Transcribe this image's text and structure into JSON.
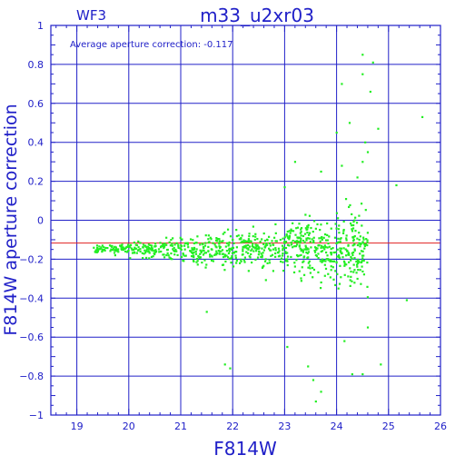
{
  "chart_data": {
    "type": "scatter",
    "panel_label": "WF3",
    "title": "m33_u2xr03",
    "annotation": "Average aperture correction: -0.117",
    "xlabel": "F814W",
    "ylabel": "F814W aperture correction",
    "xlim": [
      18.5,
      26
    ],
    "ylim": [
      -1,
      1
    ],
    "x_ticks": [
      19,
      20,
      21,
      22,
      23,
      24,
      25,
      26
    ],
    "y_ticks": [
      -1,
      -0.8,
      -0.6,
      -0.4,
      -0.2,
      0,
      0.2,
      0.4,
      0.6,
      0.8,
      1
    ],
    "x_tick_labels": [
      "19",
      "20",
      "21",
      "22",
      "23",
      "24",
      "25",
      "26"
    ],
    "y_tick_labels": [
      "−1",
      "−0.8",
      "−0.6",
      "−0.4",
      "−0.2",
      "0",
      "0.2",
      "0.4",
      "0.6",
      "0.8",
      "1"
    ],
    "grid": true,
    "reference_line": {
      "y": -0.117,
      "color": "#e02020"
    },
    "colors": {
      "points": "#22ee22",
      "axes": "#2020c8",
      "grid": "#2020c8"
    },
    "outliers": [
      {
        "x": 24.5,
        "y": 0.85
      },
      {
        "x": 24.7,
        "y": 0.81
      },
      {
        "x": 24.5,
        "y": 0.75
      },
      {
        "x": 24.65,
        "y": 0.66
      },
      {
        "x": 25.65,
        "y": 0.53
      },
      {
        "x": 24.1,
        "y": 0.7
      },
      {
        "x": 24.25,
        "y": 0.5
      },
      {
        "x": 24.8,
        "y": 0.47
      },
      {
        "x": 24.0,
        "y": 0.45
      },
      {
        "x": 24.55,
        "y": 0.4
      },
      {
        "x": 23.2,
        "y": 0.3
      },
      {
        "x": 24.6,
        "y": 0.35
      },
      {
        "x": 24.1,
        "y": 0.28
      },
      {
        "x": 23.7,
        "y": 0.25
      },
      {
        "x": 24.4,
        "y": 0.22
      },
      {
        "x": 25.15,
        "y": 0.18
      },
      {
        "x": 23.0,
        "y": 0.17
      },
      {
        "x": 24.5,
        "y": 0.3
      },
      {
        "x": 23.45,
        "y": -0.75
      },
      {
        "x": 23.55,
        "y": -0.82
      },
      {
        "x": 23.7,
        "y": -0.88
      },
      {
        "x": 24.3,
        "y": -0.79
      },
      {
        "x": 24.5,
        "y": -0.79
      },
      {
        "x": 24.85,
        "y": -0.74
      },
      {
        "x": 21.85,
        "y": -0.74
      },
      {
        "x": 21.95,
        "y": -0.76
      },
      {
        "x": 25.35,
        "y": -0.41
      },
      {
        "x": 23.05,
        "y": -0.65
      },
      {
        "x": 24.15,
        "y": -0.62
      },
      {
        "x": 21.5,
        "y": -0.47
      },
      {
        "x": 23.6,
        "y": -0.93
      },
      {
        "x": 24.6,
        "y": -0.55
      }
    ],
    "cluster": {
      "n": 900,
      "x_range": [
        19.3,
        24.6
      ],
      "center_y": -0.117,
      "note": "dense cloud of points around the average correction, widening in spread toward fainter magnitudes"
    }
  }
}
